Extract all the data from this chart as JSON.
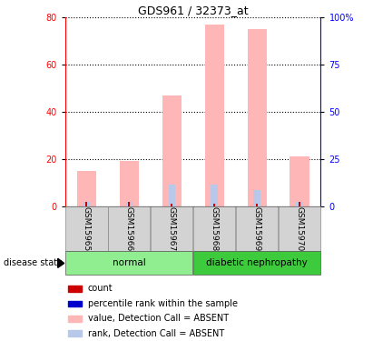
{
  "title": "GDS961 / 32373_at",
  "samples": [
    "GSM15965",
    "GSM15966",
    "GSM15967",
    "GSM15968",
    "GSM15969",
    "GSM15970"
  ],
  "value_bars": [
    15,
    19,
    47,
    77,
    75,
    21
  ],
  "rank_bars": [
    2,
    2,
    9,
    9,
    7,
    2
  ],
  "count_vals": [
    2,
    2,
    1,
    1,
    1,
    2
  ],
  "bar_color_value": "#ffb6b6",
  "bar_color_rank": "#b8c8e8",
  "bar_color_count": "#cc0000",
  "bar_color_percentile": "#0000cc",
  "ylim_left": [
    0,
    80
  ],
  "ylim_right": [
    0,
    100
  ],
  "yticks_left": [
    0,
    20,
    40,
    60,
    80
  ],
  "yticks_right": [
    0,
    25,
    50,
    75,
    100
  ],
  "ytick_labels_right": [
    "0",
    "25",
    "50",
    "75",
    "100%"
  ],
  "normal_color": "#90ee90",
  "diabetic_color": "#3dca3d",
  "sample_box_color": "#d3d3d3",
  "legend_items": [
    {
      "color": "#cc0000",
      "label": "count"
    },
    {
      "color": "#0000cc",
      "label": "percentile rank within the sample"
    },
    {
      "color": "#ffb6b6",
      "label": "value, Detection Call = ABSENT"
    },
    {
      "color": "#b8c8e8",
      "label": "rank, Detection Call = ABSENT"
    }
  ]
}
